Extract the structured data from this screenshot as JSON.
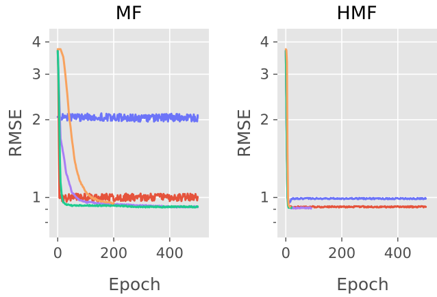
{
  "chart_data": [
    {
      "type": "line",
      "title": "MF",
      "xlabel": "Epoch",
      "ylabel": "RMSE",
      "xlim": [
        -30,
        540
      ],
      "ylim": [
        0.7,
        4.5
      ],
      "yscale": "log",
      "xticks": [
        0,
        200,
        400
      ],
      "yticks": [
        1,
        2,
        3,
        4
      ],
      "grid": true,
      "background": "#e5e5e5",
      "series": [
        {
          "color": "#6c74f8",
          "x": [
            0,
            5,
            10,
            50,
            100,
            200,
            300,
            400,
            500
          ],
          "y": [
            2.05,
            2.04,
            2.06,
            2.04,
            2.05,
            2.04,
            2.03,
            2.04,
            2.04
          ]
        },
        {
          "color": "#e5533c",
          "x": [
            0,
            2,
            4,
            5,
            10,
            50,
            100,
            200,
            300,
            400,
            500
          ],
          "y": [
            3.7,
            3.0,
            1.6,
            1.0,
            0.99,
            1.0,
            1.0,
            1.0,
            1.0,
            1.0,
            1.0
          ]
        },
        {
          "color": "#a77ef5",
          "x": [
            0,
            5,
            10,
            30,
            50,
            75,
            100,
            150,
            200,
            300,
            400,
            500
          ],
          "y": [
            3.7,
            2.5,
            1.7,
            1.25,
            1.05,
            0.98,
            0.96,
            0.95,
            0.94,
            0.93,
            0.92,
            0.92
          ]
        },
        {
          "color": "#1ecb8e",
          "x": [
            0,
            3,
            5,
            8,
            10,
            15,
            20,
            30,
            50,
            100,
            200,
            300,
            400,
            500
          ],
          "y": [
            3.7,
            2.9,
            2.1,
            1.4,
            1.15,
            1.0,
            0.96,
            0.94,
            0.93,
            0.93,
            0.93,
            0.92,
            0.92,
            0.92
          ]
        },
        {
          "color": "#f8a25e",
          "x": [
            0,
            10,
            20,
            30,
            40,
            50,
            60,
            70,
            80,
            100,
            120,
            150,
            200
          ],
          "y": [
            3.75,
            3.75,
            3.5,
            2.8,
            2.1,
            1.7,
            1.4,
            1.25,
            1.15,
            1.05,
            1.0,
            0.97,
            0.95
          ]
        }
      ]
    },
    {
      "type": "line",
      "title": "HMF",
      "xlabel": "Epoch",
      "ylabel": "RMSE",
      "xlim": [
        -30,
        540
      ],
      "ylim": [
        0.7,
        4.5
      ],
      "yscale": "log",
      "xticks": [
        0,
        200,
        400
      ],
      "yticks": [
        1,
        2,
        3,
        4
      ],
      "grid": true,
      "background": "#e5e5e5",
      "series": [
        {
          "color": "#6c74f8",
          "x": [
            0,
            3,
            6,
            10,
            15,
            20,
            50,
            100,
            200,
            300,
            400,
            500
          ],
          "y": [
            3.7,
            1.6,
            1.05,
            0.95,
            0.96,
            0.99,
            0.99,
            0.99,
            0.99,
            0.99,
            0.99,
            0.99
          ]
        },
        {
          "color": "#e5533c",
          "x": [
            0,
            3,
            6,
            10,
            15,
            20,
            50,
            100,
            200,
            300,
            400,
            500
          ],
          "y": [
            3.7,
            1.6,
            1.0,
            0.93,
            0.92,
            0.92,
            0.92,
            0.92,
            0.92,
            0.92,
            0.92,
            0.92
          ]
        },
        {
          "color": "#a77ef5",
          "x": [
            0,
            3,
            6,
            10,
            20,
            30,
            50,
            70,
            90
          ],
          "y": [
            3.7,
            1.5,
            1.0,
            0.92,
            0.91,
            0.91,
            0.91,
            0.91,
            0.91
          ]
        },
        {
          "color": "#1ecb8e",
          "x": [
            0,
            3,
            6,
            8,
            10,
            15,
            20
          ],
          "y": [
            3.7,
            1.6,
            1.0,
            0.93,
            0.91,
            0.91,
            0.91
          ]
        },
        {
          "color": "#f8a25e",
          "x": [
            0,
            3,
            5,
            6,
            8,
            10,
            15
          ],
          "y": [
            3.75,
            3.7,
            3.0,
            1.5,
            1.0,
            0.93,
            0.92
          ]
        }
      ]
    }
  ]
}
